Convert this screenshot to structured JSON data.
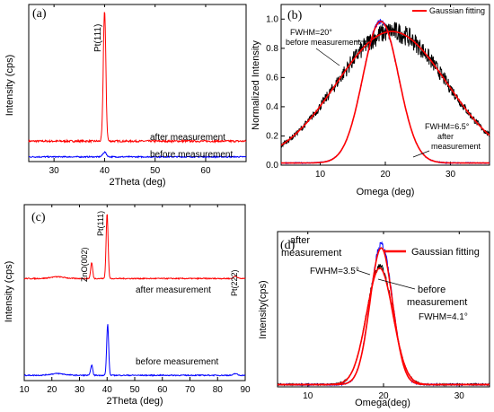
{
  "chart_data": [
    {
      "id": "a",
      "type": "line",
      "panel_label": "(a)",
      "xlabel": "2Theta (deg)",
      "ylabel": "Intensity (cps)",
      "xlim": [
        25,
        68
      ],
      "xticks": [
        30,
        40,
        50,
        60
      ],
      "y_ticks_shown": false,
      "peak_label": "Pt(111)",
      "peak_x": 40,
      "series": [
        {
          "name": "after measurement",
          "color": "#ff0000",
          "baseline": 0.13,
          "peaks": [
            {
              "x": 40,
              "h": 0.83,
              "w": 0.25
            }
          ],
          "noise": 0.006
        },
        {
          "name": "before measurement",
          "color": "#0000ff",
          "baseline": 0.03,
          "peaks": [
            {
              "x": 40,
              "h": 0.03,
              "w": 0.35
            }
          ],
          "noise": 0.004
        }
      ]
    },
    {
      "id": "b",
      "type": "line",
      "panel_label": "(b)",
      "xlabel": "Omega (deg)",
      "ylabel": "Normalized Intensity",
      "xlim": [
        4,
        36
      ],
      "ylim": [
        0.0,
        1.1
      ],
      "xticks": [
        10,
        20,
        30
      ],
      "yticks": [
        0.0,
        0.2,
        0.4,
        0.6,
        0.8,
        1.0
      ],
      "legend": "Gaussian fitting",
      "legend_color": "#ff0000",
      "annotations": [
        "FWHM=20°",
        "before measurement",
        "FWHM=6.5°",
        "after",
        "measurement"
      ],
      "series": [
        {
          "name": "before measurement (data)",
          "color": "#000000",
          "kind": "gauss",
          "center": 21,
          "fwhm": 20,
          "amp": 0.9,
          "noise": 0.07
        },
        {
          "name": "before measurement (fit)",
          "color": "#ff0000",
          "kind": "gauss",
          "center": 21,
          "fwhm": 20,
          "amp": 0.9,
          "noise": 0
        },
        {
          "name": "after measurement (data)",
          "color": "#0000ff",
          "kind": "gauss",
          "center": 19.3,
          "fwhm": 6.5,
          "amp": 0.97,
          "noise": 0.015
        },
        {
          "name": "after measurement (fit)",
          "color": "#ff0000",
          "kind": "gauss",
          "center": 19.3,
          "fwhm": 6.5,
          "amp": 0.97,
          "noise": 0
        }
      ]
    },
    {
      "id": "c",
      "type": "line",
      "panel_label": "(c)",
      "xlabel": "2Theta (deg)",
      "ylabel": "Intensity (cps)",
      "xlim": [
        10,
        90
      ],
      "xticks": [
        10,
        20,
        30,
        40,
        50,
        60,
        70,
        80,
        90
      ],
      "y_ticks_shown": false,
      "peak_labels": [
        {
          "text": "ZnO(002)",
          "x": 34.4
        },
        {
          "text": "Pt(111)",
          "x": 40
        },
        {
          "text": "Pt(222)",
          "x": 86.5
        }
      ],
      "series": [
        {
          "name": "after measurement",
          "color": "#ff0000",
          "baseline": 0.58,
          "peaks": [
            {
              "x": 22,
              "h": 0.01,
              "w": 2.5
            },
            {
              "x": 34.4,
              "h": 0.09,
              "w": 0.35
            },
            {
              "x": 40,
              "h": 0.37,
              "w": 0.35
            },
            {
              "x": 86.5,
              "h": 0.015,
              "w": 0.6
            }
          ],
          "noise": 0.003
        },
        {
          "name": "before measurement",
          "color": "#0000ff",
          "baseline": 0.03,
          "peaks": [
            {
              "x": 22,
              "h": 0.01,
              "w": 2.5
            },
            {
              "x": 34.4,
              "h": 0.06,
              "w": 0.35
            },
            {
              "x": 40.2,
              "h": 0.29,
              "w": 0.35
            },
            {
              "x": 86.5,
              "h": 0.01,
              "w": 0.6
            }
          ],
          "noise": 0.003
        }
      ]
    },
    {
      "id": "d",
      "type": "line",
      "panel_label": "(d)",
      "xlabel": "Omega(deg)",
      "ylabel": "Intensity(cps)",
      "xlim": [
        6,
        34
      ],
      "ylim": [
        0,
        1.0
      ],
      "xticks": [
        10,
        20,
        30
      ],
      "y_ticks_shown": false,
      "legend": "Gaussian fitting",
      "legend_color": "#ff0000",
      "annotations": [
        "after",
        "measurement",
        "FWHM=3.5°",
        "before",
        "measurement",
        "FWHM=4.1°"
      ],
      "series": [
        {
          "name": "after measurement (data)",
          "color": "#0000ff",
          "kind": "gauss",
          "center": 19.7,
          "fwhm": 3.5,
          "amp": 0.9,
          "noise": 0.02
        },
        {
          "name": "before measurement (data)",
          "color": "#000000",
          "kind": "gauss",
          "center": 19.5,
          "fwhm": 4.1,
          "amp": 0.76,
          "noise": 0.02
        },
        {
          "name": "after measurement (fit)",
          "color": "#ff0000",
          "kind": "gauss",
          "center": 19.7,
          "fwhm": 3.5,
          "amp": 0.88,
          "noise": 0
        },
        {
          "name": "before measurement (fit)",
          "color": "#ff0000",
          "kind": "gauss",
          "center": 19.5,
          "fwhm": 4.1,
          "amp": 0.75,
          "noise": 0
        }
      ]
    }
  ]
}
